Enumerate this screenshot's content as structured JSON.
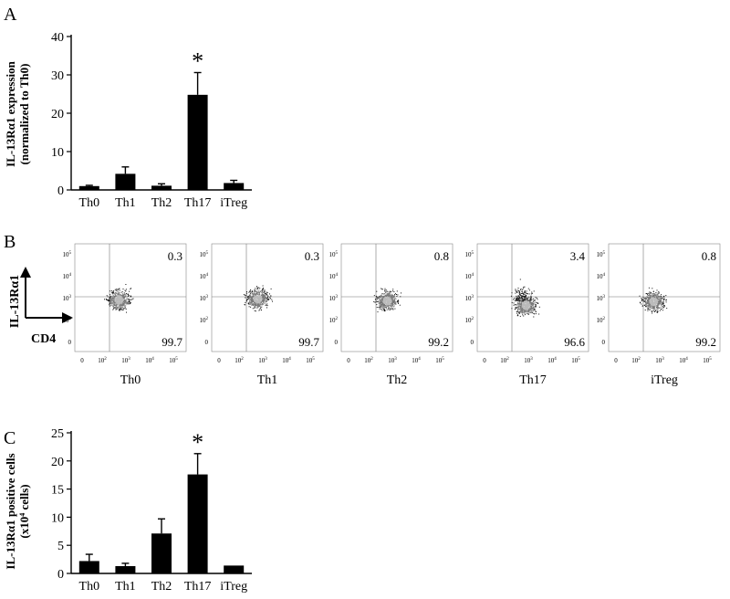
{
  "panels": {
    "A": {
      "letter": "A",
      "ylabel_line1": "IL-13Rα1 expression",
      "ylabel_line2": "(normalized to Th0)",
      "significance_mark": "*"
    },
    "B": {
      "letter": "B",
      "y_axis_label": "IL-13Rα1",
      "x_axis_label": "CD4"
    },
    "C": {
      "letter": "C",
      "ylabel_line1": "IL-13Rα1 positive cells",
      "ylabel_line2_prefix": "(x10",
      "ylabel_line2_sup": "4",
      "ylabel_line2_suffix": " cells)",
      "significance_mark": "*"
    }
  },
  "chart_data": [
    {
      "type": "bar",
      "panel": "A",
      "categories": [
        "Th0",
        "Th1",
        "Th2",
        "Th17",
        "iTreg"
      ],
      "values": [
        1.0,
        4.2,
        1.1,
        24.8,
        1.8
      ],
      "errors": [
        0.2,
        1.8,
        0.5,
        5.8,
        0.7
      ],
      "significant": [
        false,
        false,
        false,
        true,
        false
      ],
      "ylabel": "IL-13Rα1 expression (normalized to Th0)",
      "ylim": [
        0,
        40
      ],
      "yticks": [
        0,
        10,
        20,
        30,
        40
      ],
      "bar_color": "#000000"
    },
    {
      "type": "scatter",
      "panel": "B",
      "plots": [
        {
          "label": "Th0",
          "upper_right": "0.3",
          "lower_right": "99.7"
        },
        {
          "label": "Th1",
          "upper_right": "0.3",
          "lower_right": "99.7"
        },
        {
          "label": "Th2",
          "upper_right": "0.8",
          "lower_right": "99.2"
        },
        {
          "label": "Th17",
          "upper_right": "3.4",
          "lower_right": "96.6"
        },
        {
          "label": "iTreg",
          "upper_right": "0.8",
          "lower_right": "99.2"
        }
      ],
      "x_axis_label": "CD4",
      "y_axis_label": "IL-13Rα1",
      "axis_tick_labels": [
        "0",
        "10",
        "10",
        "10",
        "10"
      ],
      "axis_tick_exponents": [
        "",
        "2",
        "3",
        "4",
        "5"
      ]
    },
    {
      "type": "bar",
      "panel": "C",
      "categories": [
        "Th0",
        "Th1",
        "Th2",
        "Th17",
        "iTreg"
      ],
      "values": [
        2.2,
        1.3,
        7.1,
        17.6,
        1.4
      ],
      "errors": [
        1.2,
        0.5,
        2.6,
        3.7,
        0.0
      ],
      "significant": [
        false,
        false,
        false,
        true,
        false
      ],
      "ylabel": "IL-13Rα1 positive cells (x10⁴ cells)",
      "ylim": [
        0,
        25
      ],
      "yticks": [
        0,
        5,
        10,
        15,
        20,
        25
      ],
      "bar_color": "#000000"
    }
  ]
}
